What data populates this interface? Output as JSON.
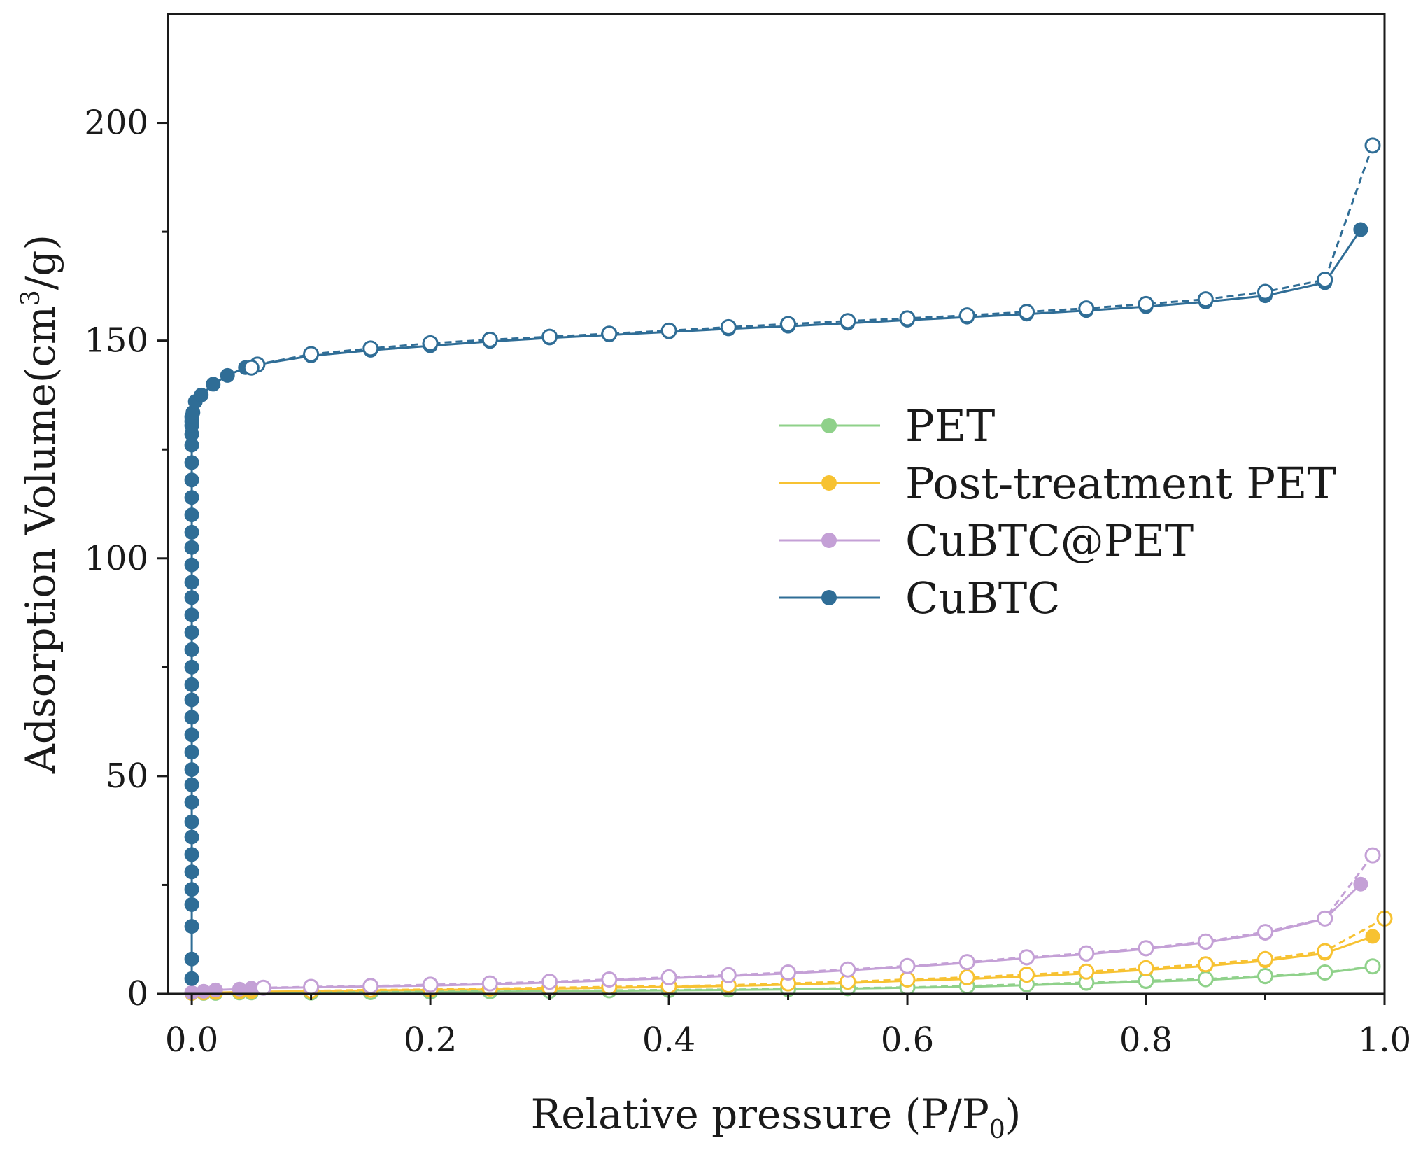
{
  "chart_data": {
    "type": "line",
    "title": "",
    "xlabel": "Relative pressure (P/P0)",
    "xlabel_parts": {
      "main": "Relative pressure (P/P",
      "sub": "0",
      "tail": ")"
    },
    "ylabel": "Adsorption Volume(cm3/g)",
    "ylabel_parts": {
      "main": "Adsorption Volume(cm",
      "sup": "3",
      "tail": "/g)"
    },
    "xlim": [
      -0.02,
      1.0
    ],
    "ylim": [
      0,
      225
    ],
    "xticks": [
      0.0,
      0.2,
      0.4,
      0.6,
      0.8,
      1.0
    ],
    "xtick_labels": [
      "0.0",
      "0.2",
      "0.4",
      "0.6",
      "0.8",
      "1.0"
    ],
    "yticks": [
      0,
      50,
      100,
      150,
      200
    ],
    "ytick_labels": [
      "0",
      "50",
      "100",
      "150",
      "200"
    ],
    "grid": false,
    "legend_position": "center-right",
    "series": [
      {
        "name": "PET",
        "color": "#8fd18a",
        "adsorption": {
          "x": [
            0.0,
            0.01,
            0.02,
            0.04,
            0.05,
            0.1,
            0.15,
            0.2,
            0.25,
            0.3,
            0.35,
            0.4,
            0.45,
            0.5,
            0.55,
            0.6,
            0.65,
            0.7,
            0.75,
            0.8,
            0.85,
            0.9,
            0.95,
            0.99
          ],
          "y": [
            0.1,
            0.1,
            0.1,
            0.2,
            0.2,
            0.2,
            0.3,
            0.4,
            0.5,
            0.6,
            0.7,
            0.8,
            0.9,
            1.0,
            1.2,
            1.4,
            1.6,
            2.0,
            2.4,
            2.8,
            3.2,
            3.9,
            4.8,
            6.2
          ]
        },
        "desorption": {
          "x": [
            0.99,
            0.95,
            0.9,
            0.85,
            0.8,
            0.75,
            0.7,
            0.65,
            0.6,
            0.55,
            0.5,
            0.45,
            0.4,
            0.35,
            0.3,
            0.25,
            0.2,
            0.15,
            0.1
          ],
          "y": [
            6.3,
            4.9,
            4.1,
            3.4,
            3.0,
            2.6,
            2.2,
            1.8,
            1.5,
            1.3,
            1.1,
            1.0,
            0.9,
            0.8,
            0.7,
            0.6,
            0.5,
            0.4,
            0.3
          ]
        }
      },
      {
        "name": "Post-treatment PET",
        "color": "#f7c232",
        "adsorption": {
          "x": [
            0.0,
            0.01,
            0.02,
            0.04,
            0.05,
            0.1,
            0.15,
            0.2,
            0.25,
            0.3,
            0.35,
            0.4,
            0.45,
            0.5,
            0.55,
            0.6,
            0.65,
            0.7,
            0.75,
            0.8,
            0.85,
            0.9,
            0.95,
            0.99
          ],
          "y": [
            0.1,
            0.2,
            0.3,
            0.4,
            0.5,
            0.6,
            0.8,
            0.9,
            1.0,
            1.2,
            1.4,
            1.6,
            1.8,
            2.1,
            2.5,
            3.0,
            3.4,
            4.0,
            4.7,
            5.5,
            6.4,
            7.6,
            9.3,
            13.2
          ]
        },
        "desorption": {
          "x": [
            1.0,
            0.95,
            0.9,
            0.85,
            0.8,
            0.75,
            0.7,
            0.65,
            0.6,
            0.55,
            0.5,
            0.45,
            0.4,
            0.35,
            0.3,
            0.25,
            0.2,
            0.15,
            0.1
          ],
          "y": [
            17.3,
            9.8,
            8.0,
            6.8,
            5.9,
            5.1,
            4.4,
            3.8,
            3.3,
            2.8,
            2.4,
            2.0,
            1.8,
            1.6,
            1.4,
            1.2,
            1.0,
            0.9,
            0.7
          ]
        }
      },
      {
        "name": "CuBTC@PET",
        "color": "#c4a0d6",
        "adsorption": {
          "x": [
            0.0,
            0.01,
            0.02,
            0.04,
            0.05,
            0.1,
            0.15,
            0.2,
            0.25,
            0.3,
            0.35,
            0.4,
            0.45,
            0.5,
            0.55,
            0.6,
            0.65,
            0.7,
            0.75,
            0.8,
            0.85,
            0.9,
            0.95,
            0.98
          ],
          "y": [
            0.3,
            0.6,
            0.9,
            1.1,
            1.3,
            1.5,
            1.7,
            1.9,
            2.2,
            2.6,
            3.1,
            3.6,
            4.1,
            4.7,
            5.4,
            6.2,
            7.1,
            8.2,
            9.1,
            10.3,
            11.8,
            13.9,
            17.2,
            25.2
          ]
        },
        "desorption": {
          "x": [
            0.99,
            0.95,
            0.9,
            0.85,
            0.8,
            0.75,
            0.7,
            0.65,
            0.6,
            0.55,
            0.5,
            0.45,
            0.4,
            0.35,
            0.3,
            0.25,
            0.2,
            0.15,
            0.1,
            0.06
          ],
          "y": [
            31.8,
            17.3,
            14.2,
            12.0,
            10.5,
            9.3,
            8.4,
            7.3,
            6.4,
            5.6,
            4.9,
            4.3,
            3.8,
            3.3,
            2.8,
            2.4,
            2.1,
            1.8,
            1.6,
            1.4
          ]
        }
      },
      {
        "name": "CuBTC",
        "color": "#2f6d96",
        "adsorption": {
          "x": [
            0.0,
            0.0,
            0.0,
            0.0,
            0.0,
            0.0,
            0.0,
            0.0,
            0.0,
            0.0,
            0.0,
            0.0,
            0.0,
            0.0,
            0.0,
            0.0,
            0.0,
            0.0,
            0.0,
            0.0,
            0.0,
            0.0,
            0.0,
            0.0,
            0.0,
            0.0,
            0.0,
            0.0,
            0.0,
            0.0,
            0.0,
            0.0,
            0.0,
            0.0,
            0.0,
            0.001,
            0.003,
            0.008,
            0.018,
            0.03,
            0.045,
            0.055,
            0.1,
            0.15,
            0.2,
            0.25,
            0.3,
            0.35,
            0.4,
            0.45,
            0.5,
            0.55,
            0.6,
            0.65,
            0.7,
            0.75,
            0.8,
            0.85,
            0.9,
            0.95,
            0.98
          ],
          "y": [
            3.5,
            8,
            15.5,
            20.5,
            24,
            28,
            32,
            36,
            39.5,
            44,
            48,
            51.5,
            55.5,
            59.5,
            63.5,
            67.5,
            71,
            75,
            79,
            83,
            87,
            91,
            94.5,
            98.5,
            102.5,
            106,
            110,
            114,
            118,
            122,
            126,
            128.5,
            130.5,
            131.5,
            132.5,
            133.5,
            136,
            137.5,
            140,
            142,
            143.8,
            144.5,
            146.5,
            147.8,
            148.8,
            149.8,
            150.6,
            151.3,
            152,
            152.7,
            153.3,
            154,
            154.7,
            155.4,
            156.1,
            156.9,
            157.8,
            158.9,
            160.3,
            163.3,
            175.5
          ]
        },
        "desorption": {
          "x": [
            0.99,
            0.95,
            0.9,
            0.85,
            0.8,
            0.75,
            0.7,
            0.65,
            0.6,
            0.55,
            0.5,
            0.45,
            0.4,
            0.35,
            0.3,
            0.25,
            0.2,
            0.15,
            0.1,
            0.055,
            0.05
          ],
          "y": [
            194.8,
            164.0,
            161.2,
            159.5,
            158.4,
            157.4,
            156.6,
            155.8,
            155.1,
            154.5,
            153.8,
            153.1,
            152.3,
            151.6,
            150.9,
            150.2,
            149.4,
            148.2,
            146.9,
            144.5,
            143.8
          ]
        }
      }
    ]
  }
}
